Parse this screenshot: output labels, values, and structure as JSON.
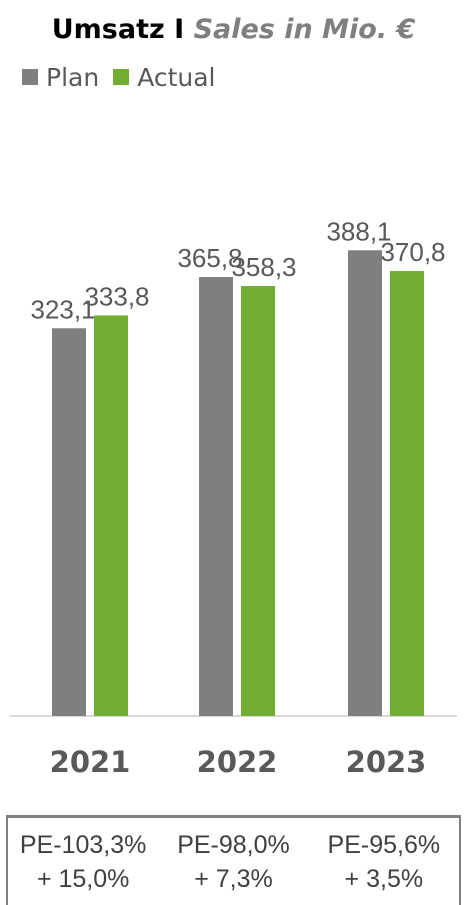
{
  "chart_data": {
    "type": "bar",
    "title": "Umsatz I",
    "subtitle": "Sales in Mio. €",
    "categories": [
      "2021",
      "2022",
      "2023"
    ],
    "series": [
      {
        "name": "Plan",
        "color": "#7f7f7f",
        "values": [
          323.1,
          365.8,
          388.1
        ],
        "labels": [
          "323,1",
          "365,8",
          "388,1"
        ]
      },
      {
        "name": "Actual",
        "color": "#70ad32",
        "values": [
          333.8,
          358.3,
          370.8
        ],
        "labels": [
          "333,8",
          "358,3",
          "370,8"
        ]
      }
    ],
    "ylim": [
      0,
      400
    ],
    "grid": false,
    "legend_position": "top-left",
    "footer": [
      {
        "line1": "PE-103,3%",
        "line2": "+ 15,0%"
      },
      {
        "line1": "PE-98,0%",
        "line2": "+ 7,3%"
      },
      {
        "line1": "PE-95,6%",
        "line2": "+ 3,5%"
      }
    ]
  }
}
